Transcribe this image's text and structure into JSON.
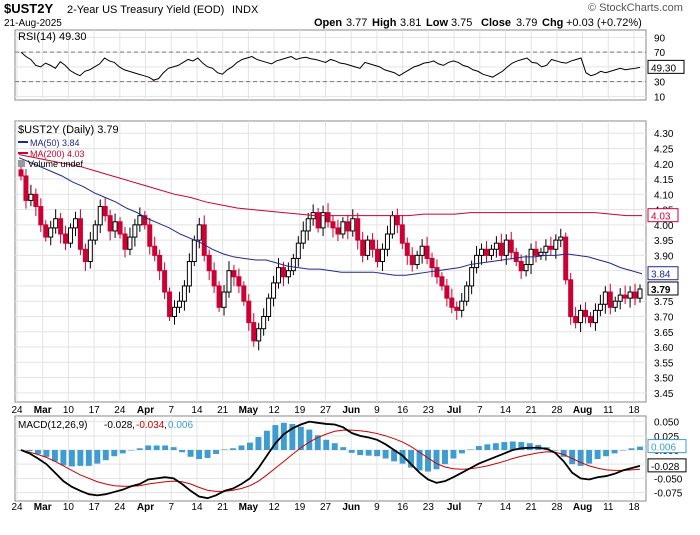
{
  "header": {
    "symbol": "$UST2Y",
    "name": "2-Year US Treasury Yield (EOD)",
    "exchange": "INDX",
    "date": "21-Aug-2025",
    "watermark": "© StockCharts.com",
    "open_label": "Open",
    "open": "3.77",
    "high_label": "High",
    "high": "3.81",
    "low_label": "Low",
    "low": "3.75",
    "close_label": "Close",
    "close": "3.79",
    "chg_label": "Chg",
    "chg": "+0.03 (+0.72%)"
  },
  "colors": {
    "up": "#000000",
    "down": "#cc0033",
    "ma50": "#1f2a8c",
    "ma200": "#cc0033",
    "rsi_line": "#000000",
    "rsi_fill": "#7a3a6a",
    "macd": "#000000",
    "signal": "#cc0000",
    "hist": "#3f9cd1",
    "grid": "#e3e3e3"
  },
  "chart_data": [
    {
      "type": "line",
      "name": "rsi-panel",
      "title": "RSI(14) 49.30",
      "last_value": "49.30",
      "ylim": [
        5,
        100
      ],
      "ticks": [
        "90",
        "70",
        "50",
        "30",
        "10"
      ],
      "reference_lines": [
        70,
        30
      ],
      "series": [
        {
          "values": [
            70,
            64,
            60,
            52,
            50,
            55,
            52,
            48,
            57,
            52,
            45,
            41,
            38,
            44,
            46,
            50,
            54,
            62,
            58,
            56,
            50,
            46,
            44,
            42,
            40,
            38,
            36,
            32,
            34,
            42,
            48,
            50,
            52,
            56,
            60,
            58,
            62,
            55,
            50,
            48,
            42,
            40,
            46,
            50,
            56,
            60,
            62,
            64,
            60,
            58,
            56,
            54,
            58,
            60,
            62,
            64,
            60,
            62,
            63,
            61,
            60,
            58,
            56,
            60,
            58,
            55,
            54,
            52,
            50,
            48,
            56,
            54,
            52,
            50,
            46,
            44,
            42,
            38,
            42,
            46,
            50,
            52,
            55,
            56,
            58,
            54,
            52,
            56,
            58,
            56,
            52,
            50,
            46,
            44,
            40,
            38,
            36,
            40,
            44,
            50,
            55,
            58,
            60,
            62,
            56,
            55,
            50,
            52,
            60,
            58,
            56,
            55,
            58,
            60,
            62,
            42,
            38,
            40,
            44,
            42,
            44,
            46,
            48,
            46,
            47,
            48,
            49.3
          ]
        }
      ]
    },
    {
      "type": "candlestick",
      "name": "price-panel",
      "title": "$UST2Y (Daily) 3.79",
      "ylim": [
        3.42,
        4.34
      ],
      "ticks": [
        "4.30",
        "4.25",
        "4.20",
        "4.15",
        "4.10",
        "4.05",
        "4.00",
        "3.95",
        "3.90",
        "3.85",
        "3.80",
        "3.75",
        "3.70",
        "3.65",
        "3.60",
        "3.55",
        "3.50",
        "3.45"
      ],
      "legend": [
        "MA(50) 3.84",
        "MA(200) 4.03",
        "Volume undef"
      ],
      "right_labels": [
        "4.03",
        "3.84",
        "3.79"
      ],
      "x_labels": [
        "24",
        "Mar",
        "10",
        "17",
        "24",
        "Apr",
        "7",
        "14",
        "21",
        "May",
        "12",
        "19",
        "27",
        "Jun",
        "9",
        "16",
        "23",
        "Jul",
        "7",
        "14",
        "21",
        "28",
        "Aug",
        "11",
        "18"
      ],
      "closes": [
        4.16,
        4.08,
        4.1,
        4.06,
        4.0,
        3.96,
        3.99,
        4.02,
        3.97,
        3.94,
        3.99,
        4.02,
        3.92,
        3.88,
        3.95,
        4.0,
        4.06,
        4.03,
        3.98,
        4.01,
        3.97,
        3.92,
        3.96,
        4.0,
        4.03,
        4.0,
        3.93,
        3.9,
        3.85,
        3.78,
        3.7,
        3.73,
        3.75,
        3.8,
        3.88,
        3.95,
        4.0,
        3.9,
        3.85,
        3.8,
        3.73,
        3.78,
        3.85,
        3.83,
        3.8,
        3.75,
        3.68,
        3.62,
        3.66,
        3.7,
        3.76,
        3.81,
        3.86,
        3.83,
        3.85,
        3.89,
        3.94,
        3.98,
        4.02,
        4.04,
        3.99,
        4.04,
        4.01,
        3.99,
        3.97,
        4.01,
        3.98,
        4.02,
        3.95,
        3.9,
        3.95,
        3.92,
        3.88,
        3.92,
        3.97,
        4.03,
        4.0,
        3.94,
        3.9,
        3.87,
        3.9,
        3.93,
        3.89,
        3.86,
        3.83,
        3.8,
        3.76,
        3.73,
        3.72,
        3.75,
        3.8,
        3.86,
        3.9,
        3.92,
        3.9,
        3.92,
        3.94,
        3.9,
        3.95,
        3.91,
        3.88,
        3.85,
        3.87,
        3.92,
        3.9,
        3.91,
        3.93,
        3.92,
        3.95,
        3.96,
        3.82,
        3.7,
        3.68,
        3.72,
        3.7,
        3.68,
        3.72,
        3.74,
        3.78,
        3.73,
        3.75,
        3.77,
        3.76,
        3.78,
        3.76,
        3.79
      ],
      "ma50": [
        4.22,
        4.205,
        4.19,
        4.175,
        4.16,
        4.14,
        4.125,
        4.105,
        4.09,
        4.075,
        4.055,
        4.04,
        4.02,
        4.005,
        3.99,
        3.97,
        3.955,
        3.94,
        3.92,
        3.905,
        3.895,
        3.89,
        3.885,
        3.885,
        3.875,
        3.865,
        3.86,
        3.855,
        3.855,
        3.85,
        3.845,
        3.845,
        3.845,
        3.845,
        3.84,
        3.835,
        3.835,
        3.84,
        3.845,
        3.85,
        3.855,
        3.86,
        3.87,
        3.875,
        3.88,
        3.885,
        3.89,
        3.895,
        3.895,
        3.9,
        3.9,
        3.905,
        3.9,
        3.895,
        3.885,
        3.875,
        3.86,
        3.85,
        3.84
      ],
      "ma200": [
        4.23,
        4.22,
        4.21,
        4.2,
        4.19,
        4.175,
        4.16,
        4.145,
        4.13,
        4.115,
        4.1,
        4.09,
        4.075,
        4.065,
        4.055,
        4.05,
        4.045,
        4.04,
        4.035,
        4.03,
        4.03,
        4.03,
        4.03,
        4.03,
        4.03,
        4.03,
        4.035,
        4.035,
        4.035,
        4.04,
        4.04,
        4.04,
        4.04,
        4.04,
        4.04,
        4.04,
        4.04,
        4.04,
        4.035,
        4.03,
        4.03
      ]
    },
    {
      "type": "bar+line",
      "name": "macd-panel",
      "title": "MACD(12,26,9) -0.028, -0.034, 0.006",
      "macd_label": "MACD(12,26,9)",
      "macd_value": "-0.028",
      "signal_value": "-0.034",
      "hist_value": "0.006",
      "ylim": [
        -0.09,
        0.06
      ],
      "ticks": [
        "0.050",
        "0.025",
        "0.000",
        "-0.025",
        "-0.050",
        "-0.075"
      ],
      "right_labels": [
        "0.006",
        "-0.028"
      ],
      "x_labels": [
        "24",
        "Mar",
        "10",
        "17",
        "24",
        "Apr",
        "7",
        "14",
        "21",
        "May",
        "12",
        "19",
        "27",
        "Jun",
        "9",
        "16",
        "23",
        "Jul",
        "7",
        "14",
        "21",
        "28",
        "Aug",
        "11",
        "18"
      ],
      "macd": [
        0.0,
        -0.006,
        -0.015,
        -0.025,
        -0.04,
        -0.055,
        -0.065,
        -0.072,
        -0.078,
        -0.08,
        -0.078,
        -0.074,
        -0.07,
        -0.064,
        -0.06,
        -0.052,
        -0.05,
        -0.048,
        -0.05,
        -0.06,
        -0.072,
        -0.082,
        -0.085,
        -0.08,
        -0.072,
        -0.068,
        -0.06,
        -0.05,
        -0.032,
        -0.01,
        0.012,
        0.028,
        0.038,
        0.045,
        0.05,
        0.048,
        0.046,
        0.045,
        0.04,
        0.03,
        0.025,
        0.022,
        0.018,
        0.01,
        0.0,
        -0.01,
        -0.025,
        -0.04,
        -0.052,
        -0.058,
        -0.055,
        -0.048,
        -0.04,
        -0.032,
        -0.024,
        -0.018,
        -0.012,
        -0.006,
        0.0,
        0.003,
        0.004,
        0.004,
        0.002,
        -0.005,
        -0.02,
        -0.04,
        -0.05,
        -0.052,
        -0.048,
        -0.046,
        -0.042,
        -0.036,
        -0.032,
        -0.028
      ],
      "signal": [
        0.0,
        -0.004,
        -0.008,
        -0.013,
        -0.02,
        -0.028,
        -0.036,
        -0.044,
        -0.05,
        -0.056,
        -0.06,
        -0.063,
        -0.064,
        -0.064,
        -0.063,
        -0.06,
        -0.058,
        -0.056,
        -0.055,
        -0.056,
        -0.06,
        -0.066,
        -0.071,
        -0.073,
        -0.073,
        -0.071,
        -0.068,
        -0.063,
        -0.055,
        -0.044,
        -0.032,
        -0.02,
        -0.008,
        0.004,
        0.014,
        0.022,
        0.028,
        0.033,
        0.035,
        0.035,
        0.034,
        0.032,
        0.029,
        0.025,
        0.02,
        0.014,
        0.006,
        -0.004,
        -0.014,
        -0.024,
        -0.03,
        -0.033,
        -0.034,
        -0.033,
        -0.031,
        -0.028,
        -0.024,
        -0.02,
        -0.015,
        -0.011,
        -0.008,
        -0.005,
        -0.003,
        -0.004,
        -0.008,
        -0.015,
        -0.022,
        -0.028,
        -0.032,
        -0.035,
        -0.036,
        -0.036,
        -0.035,
        -0.034
      ]
    }
  ]
}
